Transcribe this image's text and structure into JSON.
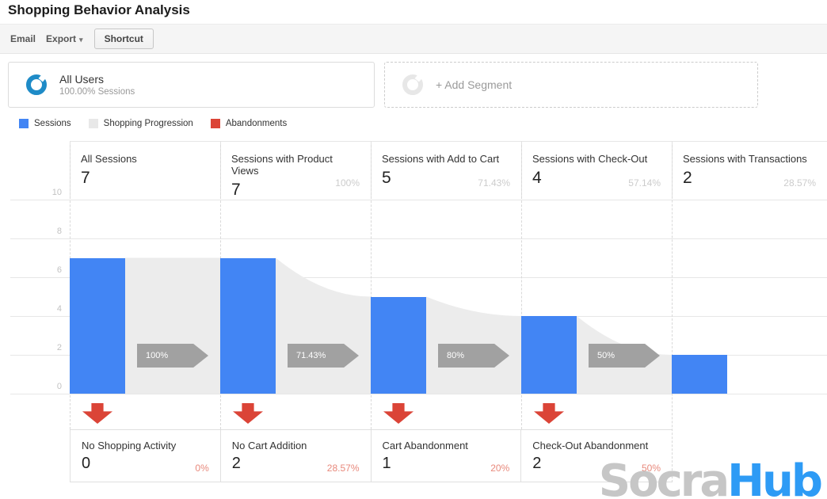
{
  "page": {
    "title": "Shopping Behavior Analysis"
  },
  "toolbar": {
    "email_label": "Email",
    "export_label": "Export",
    "shortcut_label": "Shortcut"
  },
  "segments": {
    "all_users_title": "All Users",
    "all_users_subtitle": "100.00% Sessions",
    "add_segment_label": "+ Add Segment"
  },
  "legend": [
    {
      "label": "Sessions",
      "color": "#4285f4"
    },
    {
      "label": "Shopping Progression",
      "color": "#e8e8e8"
    },
    {
      "label": "Abandonments",
      "color": "#db4437"
    }
  ],
  "chart_data": {
    "type": "bar",
    "subtype": "shopping-behavior-funnel",
    "title": "Shopping Behavior Analysis",
    "y_ticks": [
      10,
      8,
      6,
      4,
      2,
      0
    ],
    "ylim": [
      0,
      10
    ],
    "stages": [
      {
        "label": "All Sessions",
        "value": 7,
        "percent": ""
      },
      {
        "label": "Sessions with Product Views",
        "value": 7,
        "percent": "100%"
      },
      {
        "label": "Sessions with Add to Cart",
        "value": 5,
        "percent": "71.43%"
      },
      {
        "label": "Sessions with Check-Out",
        "value": 4,
        "percent": "57.14%"
      },
      {
        "label": "Sessions with Transactions",
        "value": 2,
        "percent": "28.57%"
      }
    ],
    "progression_arrows": [
      "100%",
      "71.43%",
      "80%",
      "50%"
    ],
    "abandonments": [
      {
        "label": "No Shopping Activity",
        "value": 0,
        "percent": "0%"
      },
      {
        "label": "No Cart Addition",
        "value": 2,
        "percent": "28.57%"
      },
      {
        "label": "Cart Abandonment",
        "value": 1,
        "percent": "20%"
      },
      {
        "label": "Check-Out Abandonment",
        "value": 2,
        "percent": "50%"
      }
    ],
    "colors": {
      "sessions": "#4285f4",
      "progression": "#ececec",
      "abandonment": "#db4437",
      "arrow_badge": "#a1a1a1"
    }
  },
  "watermark": {
    "gray_text": "Socra",
    "blue_text": "Hub"
  }
}
